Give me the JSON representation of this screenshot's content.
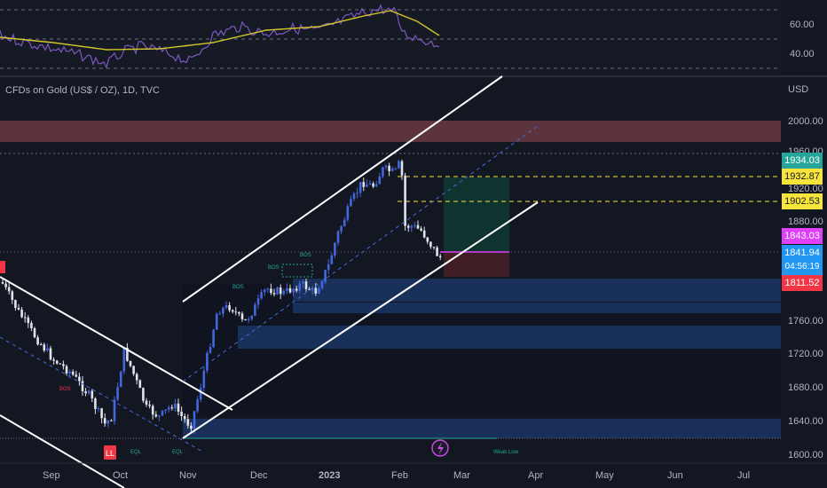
{
  "symbol": {
    "title": "CFDs on Gold (US$ / OZ), 1D, TVC",
    "currency": "USD"
  },
  "rsi": {
    "ticks": [
      "60.00",
      "40.00"
    ]
  },
  "price_axis": {
    "ticks": [
      "2000.00",
      "1960.00",
      "1920.00",
      "1880.00",
      "1760.00",
      "1720.00",
      "1680.00",
      "1640.00",
      "1600.00"
    ]
  },
  "time_axis": {
    "labels": [
      "Sep",
      "Oct",
      "Nov",
      "Dec",
      "2023",
      "Feb",
      "Mar",
      "Apr",
      "May",
      "Jun",
      "Jul"
    ]
  },
  "badges": [
    {
      "value": "1934.03",
      "bg": "#26a69a",
      "fg": "#ffffff"
    },
    {
      "value": "1932.87",
      "bg": "#f7e53b",
      "fg": "#131722"
    },
    {
      "value": "1902.53",
      "bg": "#f7e53b",
      "fg": "#131722"
    },
    {
      "value": "1843.03",
      "bg": "#e040fb",
      "fg": "#ffffff"
    },
    {
      "value": "1841.94",
      "bg": "#2196f3",
      "fg": "#ffffff"
    },
    {
      "value": "04:56:19",
      "bg": "#2196f3",
      "fg": "#ffffff"
    },
    {
      "value": "1811.52",
      "bg": "#f23645",
      "fg": "#ffffff"
    }
  ],
  "annotations": {
    "ll": "LL",
    "bos": "BOS",
    "eql": "EQL",
    "weak_low": "Weak Low"
  },
  "colors": {
    "bull": "#4466dd",
    "bear": "#e0e3eb",
    "channel": "#ffffff",
    "rsi": "#7e57c2",
    "rsi_ma": "#d4c72a"
  }
}
